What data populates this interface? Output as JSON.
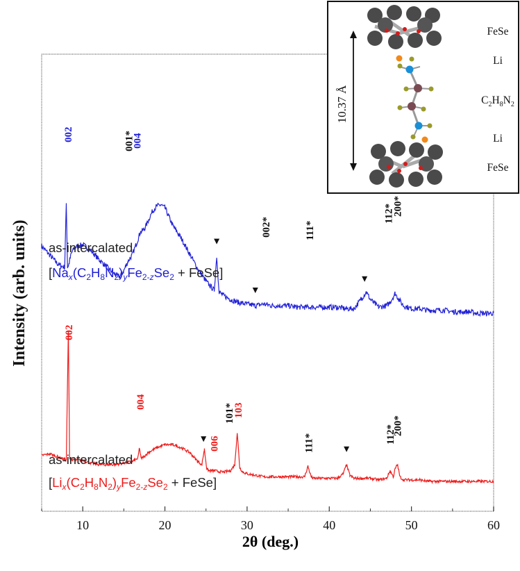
{
  "chart_data": {
    "type": "line",
    "xlabel": "2θ (deg.)",
    "ylabel": "Intensity (arb. units)",
    "xlim": [
      5,
      60
    ],
    "xticks": [
      10,
      20,
      30,
      40,
      50,
      60
    ],
    "yticks_labeled": false,
    "series": [
      {
        "name": "as-intercalated [Nax(C2H8N2)yFe2-zSe2 + FeSe]",
        "color": "#2323d8",
        "baseline": 0.57,
        "x": [
          5,
          6,
          7,
          7.8,
          8.0,
          8.15,
          8.3,
          8.6,
          9,
          10,
          11,
          12,
          13,
          14,
          14.5,
          15,
          15.5,
          16,
          16.5,
          17,
          17.5,
          18,
          18.5,
          19,
          19.5,
          20,
          20.5,
          21,
          22,
          23,
          24,
          25,
          26,
          26.3,
          26.6,
          27,
          28,
          29,
          30,
          31,
          32,
          33,
          34,
          35,
          36,
          37,
          38,
          39,
          40,
          41,
          42,
          43,
          44,
          44.5,
          45,
          46,
          47,
          47.5,
          48,
          48.5,
          49,
          50,
          51,
          52,
          53,
          54,
          55,
          56,
          57,
          58,
          59,
          60
        ],
        "y": [
          0.99,
          0.93,
          0.87,
          0.85,
          1.27,
          0.85,
          0.87,
          0.94,
          0.98,
          1.0,
          0.96,
          0.9,
          0.85,
          0.8,
          0.79,
          0.83,
          0.89,
          0.93,
          1.0,
          1.08,
          1.1,
          1.16,
          1.22,
          1.25,
          1.26,
          1.24,
          1.18,
          1.12,
          1.04,
          0.94,
          0.84,
          0.76,
          0.7,
          0.92,
          0.69,
          0.67,
          0.64,
          0.62,
          0.61,
          0.6,
          0.61,
          0.6,
          0.6,
          0.6,
          0.59,
          0.59,
          0.59,
          0.59,
          0.59,
          0.59,
          0.58,
          0.58,
          0.65,
          0.69,
          0.64,
          0.59,
          0.6,
          0.63,
          0.68,
          0.64,
          0.6,
          0.58,
          0.58,
          0.57,
          0.57,
          0.57,
          0.56,
          0.56,
          0.56,
          0.55,
          0.55,
          0.55
        ]
      },
      {
        "name": "as-intercalated [Lix(C2H8N2)yFe2-zSe2 + FeSe]",
        "color": "#ee1b1b",
        "baseline": 0.0,
        "x": [
          5,
          6,
          7,
          8,
          8.25,
          8.4,
          8.55,
          8.8,
          9,
          10,
          11,
          12,
          13,
          14,
          15,
          16,
          16.7,
          16.9,
          17.1,
          17.4,
          18,
          19,
          20,
          21,
          22,
          23,
          24,
          24.5,
          24.8,
          25.1,
          25.4,
          26,
          27,
          28,
          28.5,
          28.8,
          29.1,
          29.5,
          30,
          31,
          32,
          33,
          34,
          35,
          36,
          37,
          37.4,
          37.8,
          38,
          39,
          40,
          41,
          41.7,
          42.1,
          42.5,
          43,
          44,
          45,
          46,
          47,
          47.4,
          47.8,
          48,
          48.3,
          48.6,
          49,
          50,
          51,
          52,
          53,
          54,
          55,
          56,
          57,
          58,
          59,
          60
        ],
        "y": [
          0.19,
          0.2,
          0.18,
          0.16,
          1.0,
          0.18,
          0.16,
          0.16,
          0.16,
          0.16,
          0.14,
          0.13,
          0.13,
          0.13,
          0.14,
          0.15,
          0.17,
          0.24,
          0.17,
          0.18,
          0.21,
          0.24,
          0.26,
          0.26,
          0.24,
          0.21,
          0.15,
          0.13,
          0.23,
          0.1,
          0.09,
          0.09,
          0.08,
          0.09,
          0.13,
          0.34,
          0.11,
          0.08,
          0.07,
          0.06,
          0.05,
          0.05,
          0.05,
          0.05,
          0.05,
          0.05,
          0.12,
          0.05,
          0.04,
          0.04,
          0.04,
          0.04,
          0.07,
          0.13,
          0.06,
          0.04,
          0.04,
          0.04,
          0.03,
          0.04,
          0.09,
          0.05,
          0.1,
          0.13,
          0.05,
          0.03,
          0.03,
          0.03,
          0.02,
          0.02,
          0.02,
          0.02,
          0.02,
          0.02,
          0.02,
          0.02,
          0.02
        ]
      }
    ],
    "peak_labels": [
      {
        "text": "002",
        "x": 8.2,
        "series": 0,
        "color": "#2323d8"
      },
      {
        "text": "001*",
        "x": 15.6,
        "series": 0,
        "color": "#111111"
      },
      {
        "text": "004",
        "x": 16.6,
        "series": 0,
        "color": "#2323d8"
      },
      {
        "text": "002*",
        "x": 32.3,
        "series": 0,
        "color": "#111111"
      },
      {
        "text": "111*",
        "x": 37.6,
        "series": 0,
        "color": "#111111"
      },
      {
        "text": "112*",
        "x": 47.2,
        "series": 0,
        "color": "#111111"
      },
      {
        "text": "200*",
        "x": 48.3,
        "series": 0,
        "color": "#111111"
      },
      {
        "text": "002",
        "x": 8.3,
        "series": 1,
        "color": "#ee1b1b"
      },
      {
        "text": "004",
        "x": 17.0,
        "series": 1,
        "color": "#ee1b1b"
      },
      {
        "text": "006",
        "x": 26.0,
        "series": 1,
        "color": "#ee1b1b"
      },
      {
        "text": "101*",
        "x": 27.8,
        "series": 1,
        "color": "#111111"
      },
      {
        "text": "103",
        "x": 28.9,
        "series": 1,
        "color": "#ee1b1b"
      },
      {
        "text": "111*",
        "x": 37.5,
        "series": 1,
        "color": "#111111"
      },
      {
        "text": "112*",
        "x": 47.4,
        "series": 1,
        "color": "#111111"
      },
      {
        "text": "200*",
        "x": 48.3,
        "series": 1,
        "color": "#111111"
      }
    ],
    "impurity_markers": [
      {
        "x": 26.3,
        "series": 0
      },
      {
        "x": 31.0,
        "series": 0
      },
      {
        "x": 44.3,
        "series": 0
      },
      {
        "x": 24.7,
        "series": 1
      },
      {
        "x": 42.1,
        "series": 1
      }
    ]
  },
  "captions": {
    "blue_title": "as-intercalated",
    "red_title": "as-intercalated",
    "bracket_open": "[",
    "bracket_close": "+ FeSe]",
    "blue_formula": {
      "a": "Na",
      "x": "x",
      "b": "(C",
      "b2": "2",
      "c": "H",
      "c8": "8",
      "d": "N",
      "d2": "2",
      "e": ")",
      "y": "y",
      "f": "Fe",
      "f2": "2-",
      "z": "z",
      "g": "Se",
      "g2": "2"
    },
    "red_formula": {
      "a": "Li",
      "x": "x",
      "b": "(C",
      "b2": "2",
      "c": "H",
      "c8": "8",
      "d": "N",
      "d2": "2",
      "e": ")",
      "y": "y",
      "f": "Fe",
      "f2": "2-",
      "z": "z",
      "g": "Se",
      "g2": "2"
    },
    "axis_x_theta": "2θ (deg.)"
  },
  "inset": {
    "spacing": "10.37 Å",
    "labels": [
      "FeSe",
      "Li",
      "C",
      "2",
      "H",
      "8",
      "N",
      "2",
      "Li",
      "FeSe"
    ]
  },
  "colors": {
    "blue": "#2323d8",
    "red": "#ee1b1b",
    "atom_fe_se": "#4a4a4a",
    "atom_li": "#f08a1c",
    "atom_n": "#1a8fd6",
    "atom_c": "#7a4a52",
    "atom_h": "#9a9a2a"
  }
}
